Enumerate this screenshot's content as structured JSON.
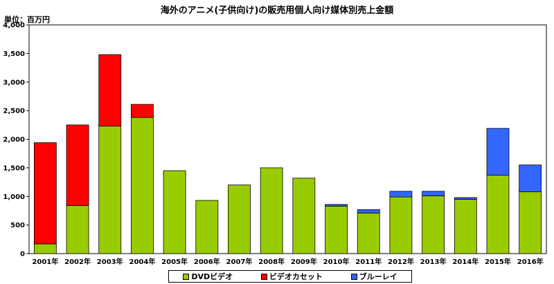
{
  "chart_data": {
    "type": "bar",
    "stacked": true,
    "title": "海外のアニメ(子供向け)の販売用個人向け媒体別売上金額",
    "unit_label": "単位：百万円",
    "categories": [
      "2001年",
      "2002年",
      "2003年",
      "2004年",
      "2005年",
      "2006年",
      "2007年",
      "2008年",
      "2009年",
      "2010年",
      "2011年",
      "2012年",
      "2013年",
      "2014年",
      "2015年",
      "2016年"
    ],
    "ylim": [
      0,
      4000
    ],
    "yticks": [
      0,
      500,
      1000,
      1500,
      2000,
      2500,
      3000,
      3500,
      4000
    ],
    "ytick_labels": [
      "0",
      "500",
      "1,000",
      "1,500",
      "2,000",
      "2,500",
      "3,000",
      "3,500",
      "4,000"
    ],
    "grid": false,
    "legend_position": "bottom",
    "series": [
      {
        "name": "DVDビデオ",
        "color": "#99cc00",
        "values": [
          170,
          840,
          2230,
          2380,
          1450,
          930,
          1200,
          1500,
          1320,
          830,
          710,
          990,
          1010,
          950,
          1370,
          1080
        ]
      },
      {
        "name": "ビデオカセット",
        "color": "#ff0000",
        "values": [
          1770,
          1410,
          1250,
          230,
          0,
          0,
          0,
          0,
          0,
          0,
          0,
          0,
          0,
          0,
          0,
          0
        ]
      },
      {
        "name": "ブルーレイ",
        "color": "#3366ff",
        "values": [
          0,
          0,
          0,
          0,
          0,
          0,
          0,
          0,
          0,
          30,
          60,
          100,
          80,
          30,
          820,
          470
        ]
      }
    ]
  }
}
